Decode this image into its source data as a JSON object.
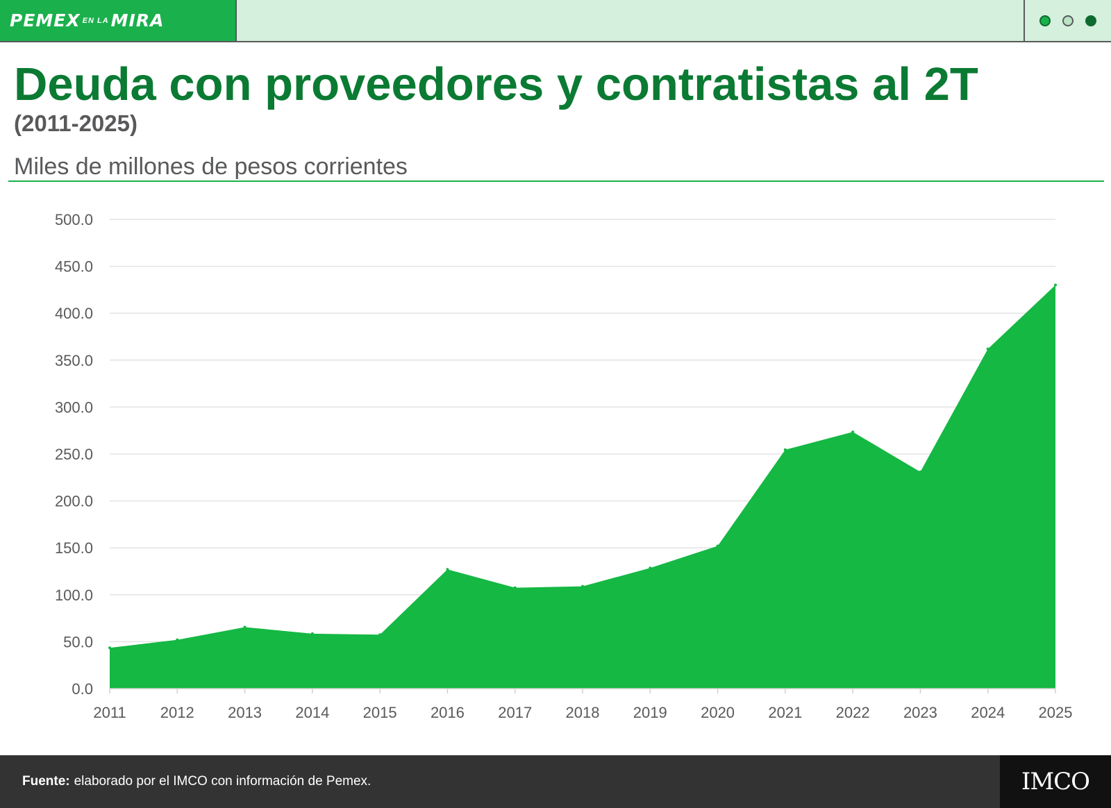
{
  "header": {
    "brand_main_1": "PEMEX",
    "brand_small": "EN LA",
    "brand_main_2": "MIRA",
    "indicator_dots": [
      {
        "color": "#1ab04c",
        "state": "filled-light"
      },
      {
        "color": "#b9e4c5",
        "state": "outlined"
      },
      {
        "color": "#0d6b30",
        "state": "filled-dark"
      }
    ]
  },
  "title": "Deuda con proveedores y contratistas al 2T",
  "subtitle": "(2011-2025)",
  "units": "Miles de millones de pesos corrientes",
  "chart_data": {
    "type": "area",
    "title": "Deuda con proveedores y contratistas al 2T",
    "xlabel": "",
    "ylabel": "",
    "categories": [
      "2011",
      "2012",
      "2013",
      "2014",
      "2015",
      "2016",
      "2017",
      "2018",
      "2019",
      "2020",
      "2021",
      "2022",
      "2023",
      "2024",
      "2025"
    ],
    "values": [
      43.5,
      52,
      65.5,
      58.5,
      57.5,
      127,
      107.5,
      109,
      128.5,
      152,
      254.5,
      273.5,
      231,
      362,
      430
    ],
    "ylim": [
      0,
      500
    ],
    "y_ticks": [
      "0.0",
      "50.0",
      "100.0",
      "150.0",
      "200.0",
      "250.0",
      "300.0",
      "350.0",
      "400.0",
      "450.0",
      "500.0"
    ],
    "grid": true,
    "legend": "none",
    "color": "#14b843"
  },
  "footer": {
    "source_label": "Fuente:",
    "source_text": "elaborado por el IMCO con información de Pemex.",
    "logo_text": "IMCO"
  }
}
